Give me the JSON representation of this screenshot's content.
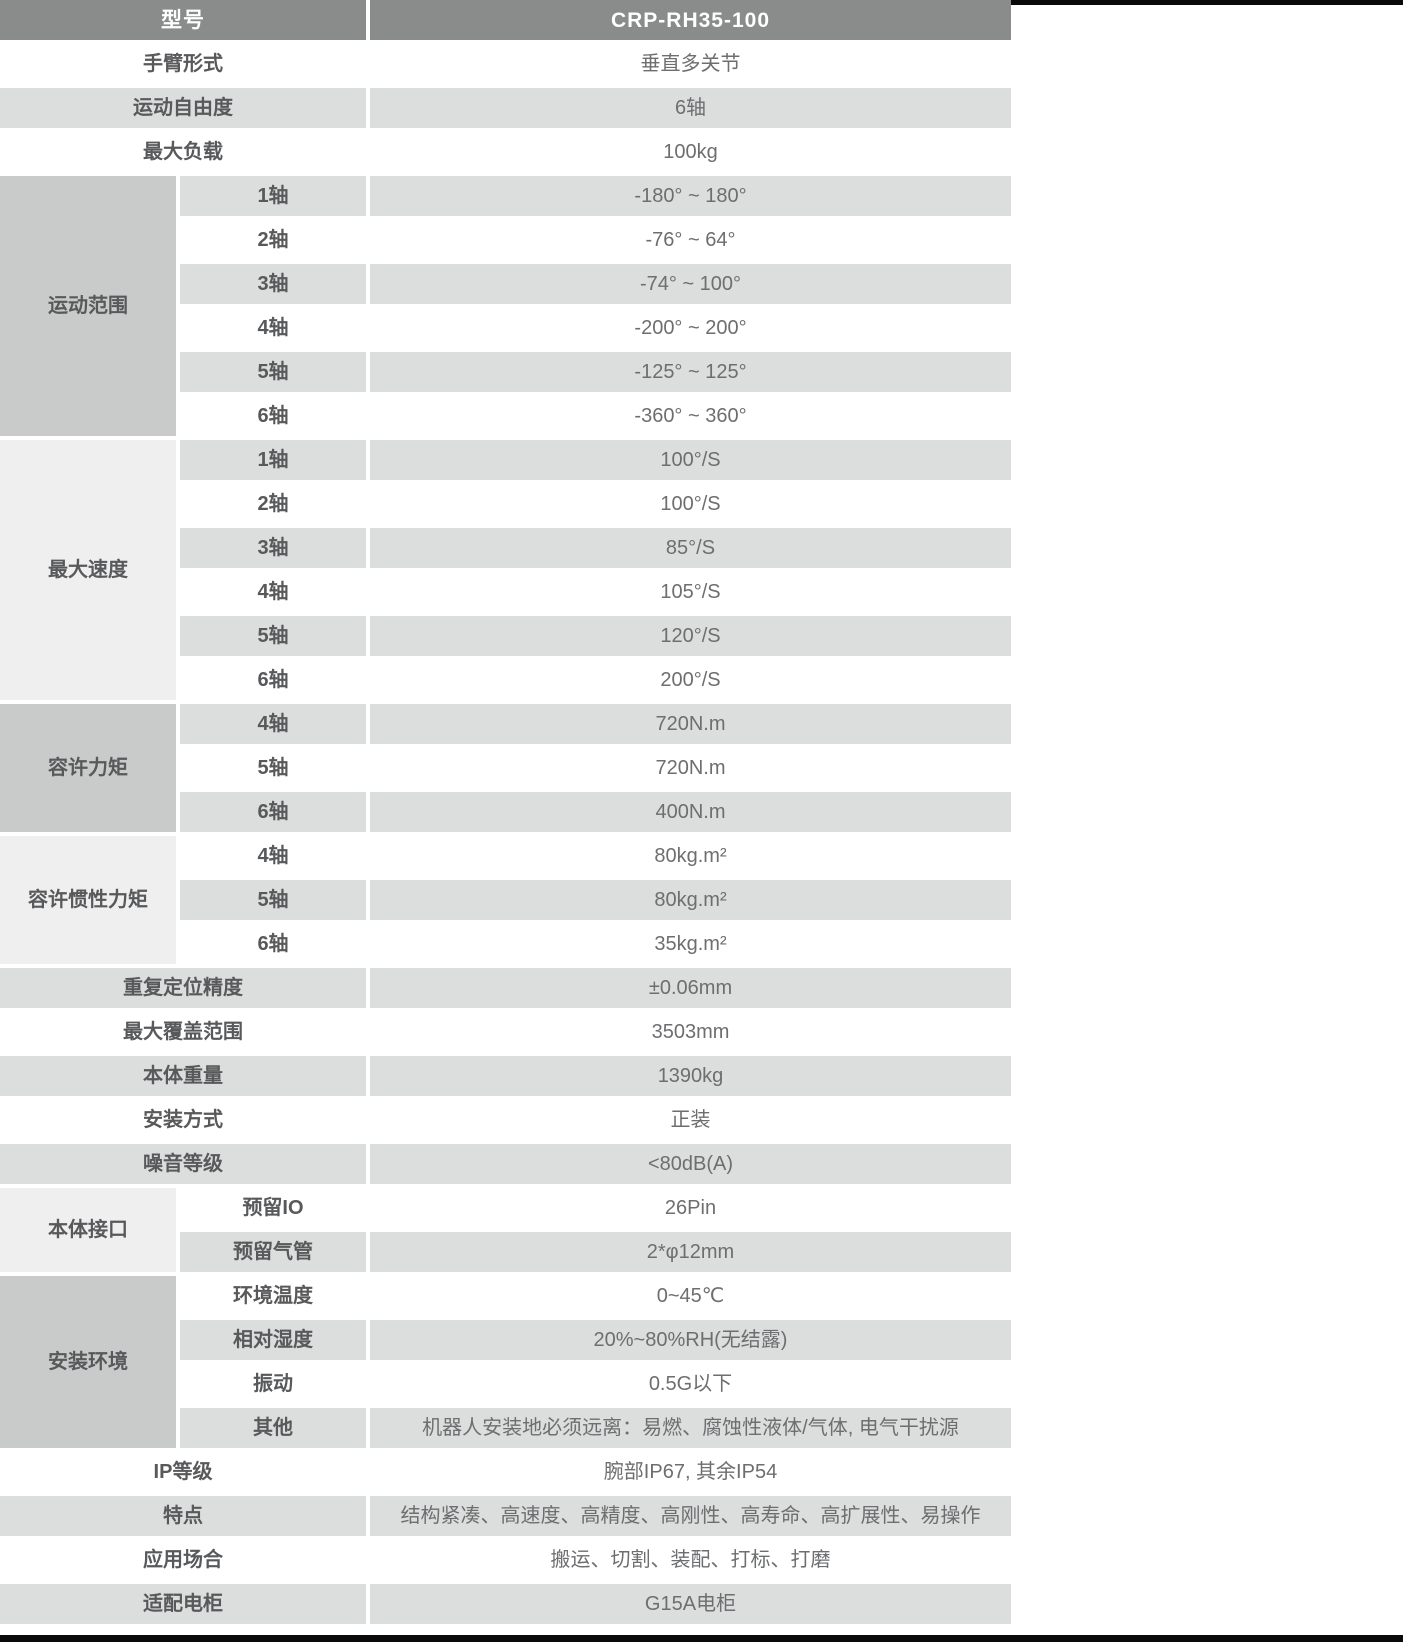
{
  "header": {
    "label": "型号",
    "value": "CRP-RH35-100"
  },
  "rows": [
    {
      "type": "simple",
      "label": "手臂形式",
      "value": "垂直多关节"
    },
    {
      "type": "simple",
      "label": "运动自由度",
      "value": "6轴"
    },
    {
      "type": "simple",
      "label": "最大负载",
      "value": "100kg"
    },
    {
      "type": "group",
      "label": "运动范围",
      "shade": "dark",
      "items": [
        {
          "label": "1轴",
          "value": "-180° ~ 180°"
        },
        {
          "label": "2轴",
          "value": "-76° ~ 64°"
        },
        {
          "label": "3轴",
          "value": "-74° ~ 100°"
        },
        {
          "label": "4轴",
          "value": "-200° ~ 200°"
        },
        {
          "label": "5轴",
          "value": "-125° ~ 125°"
        },
        {
          "label": "6轴",
          "value": "-360° ~ 360°"
        }
      ]
    },
    {
      "type": "group",
      "label": "最大速度",
      "shade": "light",
      "items": [
        {
          "label": "1轴",
          "value": "100°/S"
        },
        {
          "label": "2轴",
          "value": "100°/S"
        },
        {
          "label": "3轴",
          "value": "85°/S"
        },
        {
          "label": "4轴",
          "value": "105°/S"
        },
        {
          "label": "5轴",
          "value": "120°/S"
        },
        {
          "label": "6轴",
          "value": "200°/S"
        }
      ]
    },
    {
      "type": "group",
      "label": "容许力矩",
      "shade": "dark",
      "items": [
        {
          "label": "4轴",
          "value": "720N.m"
        },
        {
          "label": "5轴",
          "value": "720N.m"
        },
        {
          "label": "6轴",
          "value": "400N.m"
        }
      ]
    },
    {
      "type": "group",
      "label": "容许惯性力矩",
      "shade": "light",
      "items": [
        {
          "label": "4轴",
          "value": "80kg.m²"
        },
        {
          "label": "5轴",
          "value": "80kg.m²"
        },
        {
          "label": "6轴",
          "value": "35kg.m²"
        }
      ]
    },
    {
      "type": "simple",
      "label": "重复定位精度",
      "value": "±0.06mm"
    },
    {
      "type": "simple",
      "label": "最大覆盖范围",
      "value": "3503mm"
    },
    {
      "type": "simple",
      "label": "本体重量",
      "value": "1390kg"
    },
    {
      "type": "simple",
      "label": "安装方式",
      "value": "正装"
    },
    {
      "type": "simple",
      "label": "噪音等级",
      "value": "<80dB(A)"
    },
    {
      "type": "group",
      "label": "本体接口",
      "shade": "light",
      "items": [
        {
          "label": "预留IO",
          "value": "26Pin"
        },
        {
          "label": "预留气管",
          "value": "2*φ12mm"
        }
      ]
    },
    {
      "type": "group",
      "label": "安装环境",
      "shade": "dark",
      "items": [
        {
          "label": "环境温度",
          "value": "0~45℃"
        },
        {
          "label": "相对湿度",
          "value": "20%~80%RH(无结露)"
        },
        {
          "label": "振动",
          "value": "0.5G以下"
        },
        {
          "label": "其他",
          "value": "机器人安装地必须远离：易燃、腐蚀性液体/气体, 电气干扰源"
        }
      ]
    },
    {
      "type": "simple",
      "label": "IP等级",
      "value": "腕部IP67, 其余IP54"
    },
    {
      "type": "simple",
      "label": "特点",
      "value": "结构紧凑、高速度、高精度、高刚性、高寿命、高扩展性、易操作"
    },
    {
      "type": "simple",
      "label": "应用场合",
      "value": "搬运、切割、装配、打标、打磨"
    },
    {
      "type": "simple",
      "label": "适配电柜",
      "value": "G15A电柜"
    }
  ],
  "colors": {
    "header_bg": "#8a8b8b",
    "stripe_bg": "#dcdddd",
    "group_dark_bg": "#c9caca",
    "group_light_bg": "#efefef",
    "label_fg": "#58595b",
    "value_fg": "#6d6e70",
    "bar_bg": "#0a0a0a",
    "header_fg": "#ffffff"
  }
}
